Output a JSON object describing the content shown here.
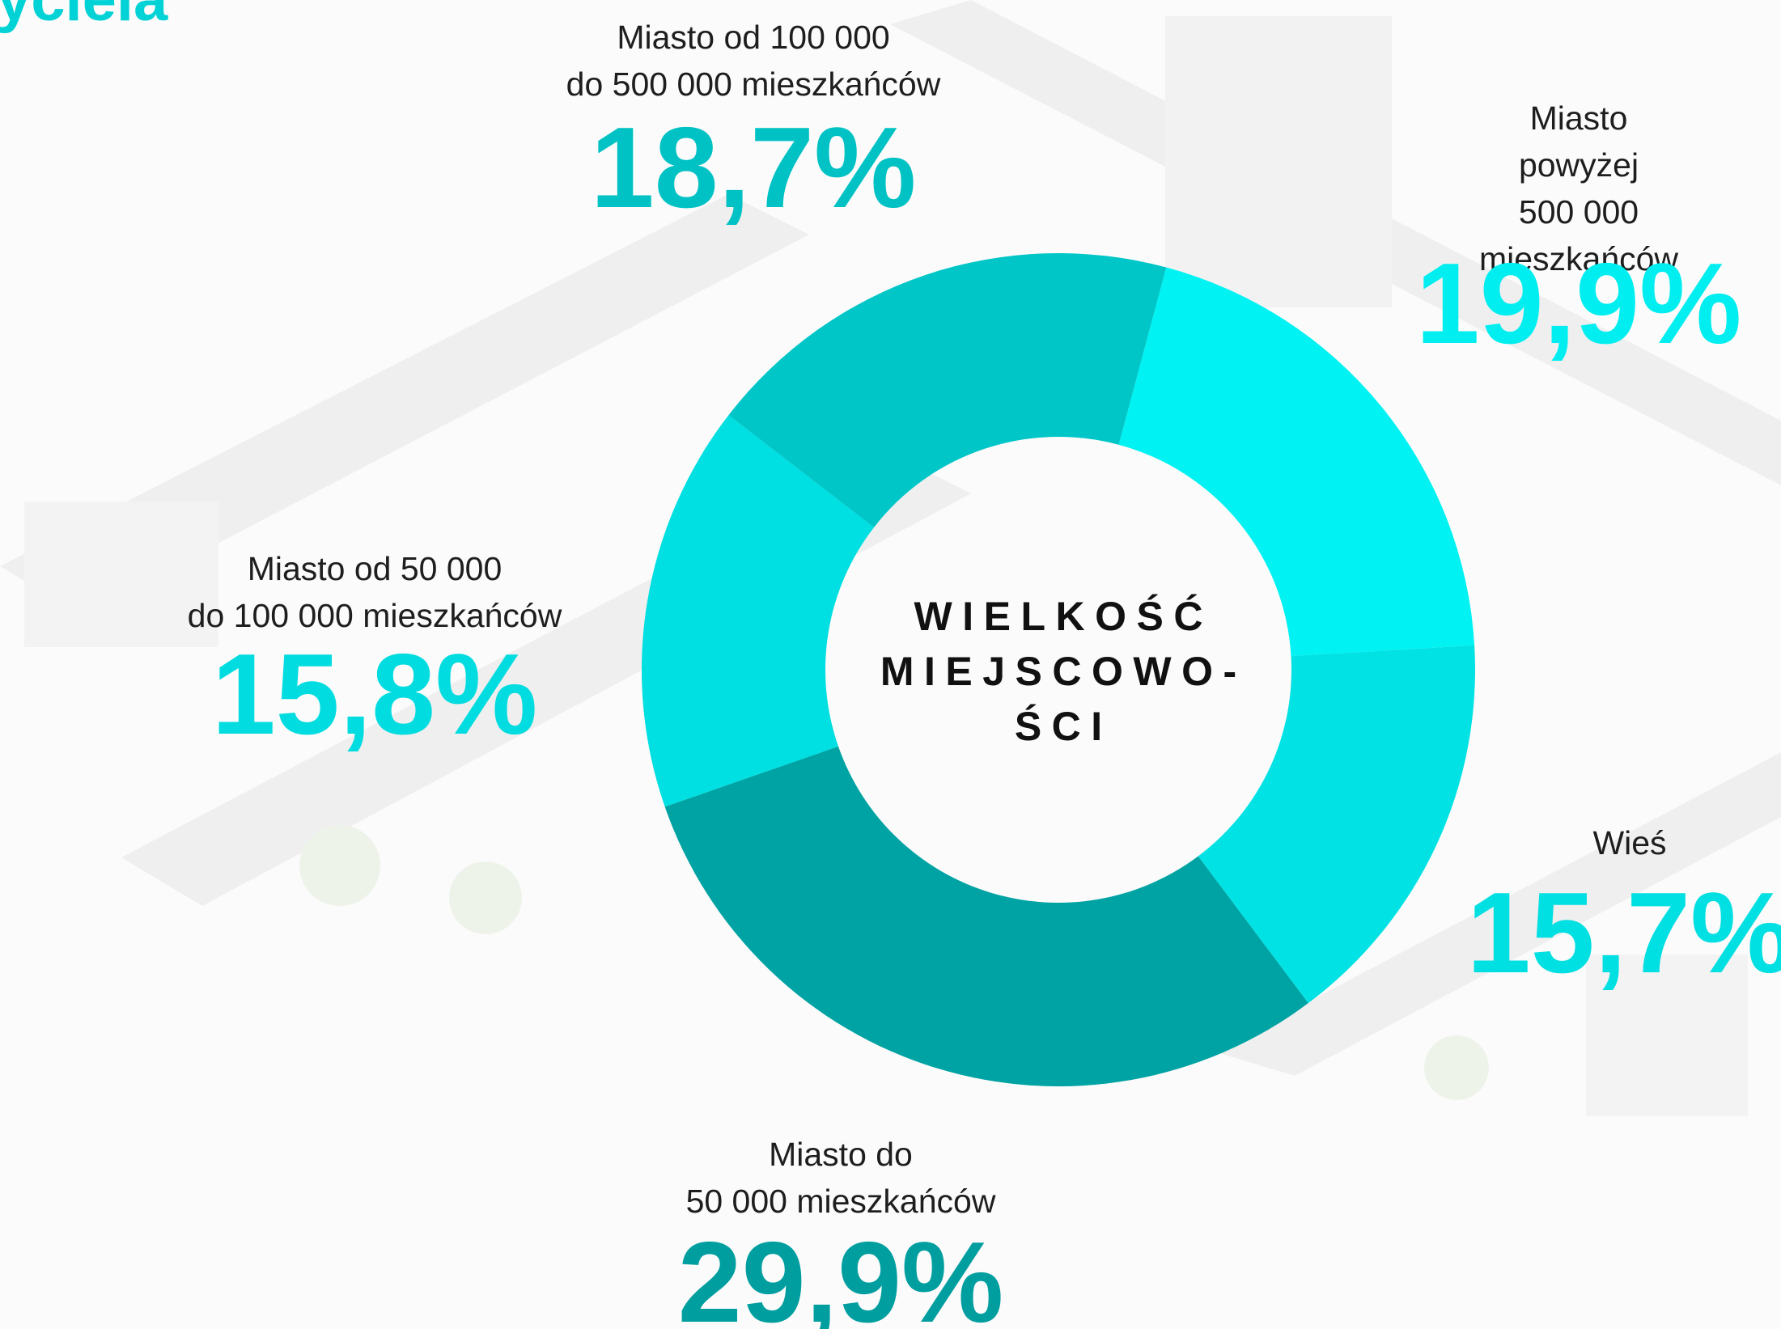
{
  "header_fragment": "yciela",
  "chart_data": {
    "type": "donut",
    "title": "WIELKOŚĆ\nMIEJSCOWO-\nŚCI",
    "categories": [
      "Miasto powyżej\n500 000 mieszkańców",
      "Wieś",
      "Miasto do\n50 000 mieszkańców",
      "Miasto od 50 000\ndo 100 000 mieszkańców",
      "Miasto od 100 000\ndo 500 000 mieszkańców"
    ],
    "values": [
      19.9,
      15.7,
      29.9,
      15.8,
      18.7
    ],
    "value_labels": [
      "19,9%",
      "15,7%",
      "29,9%",
      "15,8%",
      "18,7%"
    ],
    "colors": [
      "#00f2f2",
      "#00e2e4",
      "#00a3a3",
      "#00dfe1",
      "#00c6c8"
    ]
  }
}
